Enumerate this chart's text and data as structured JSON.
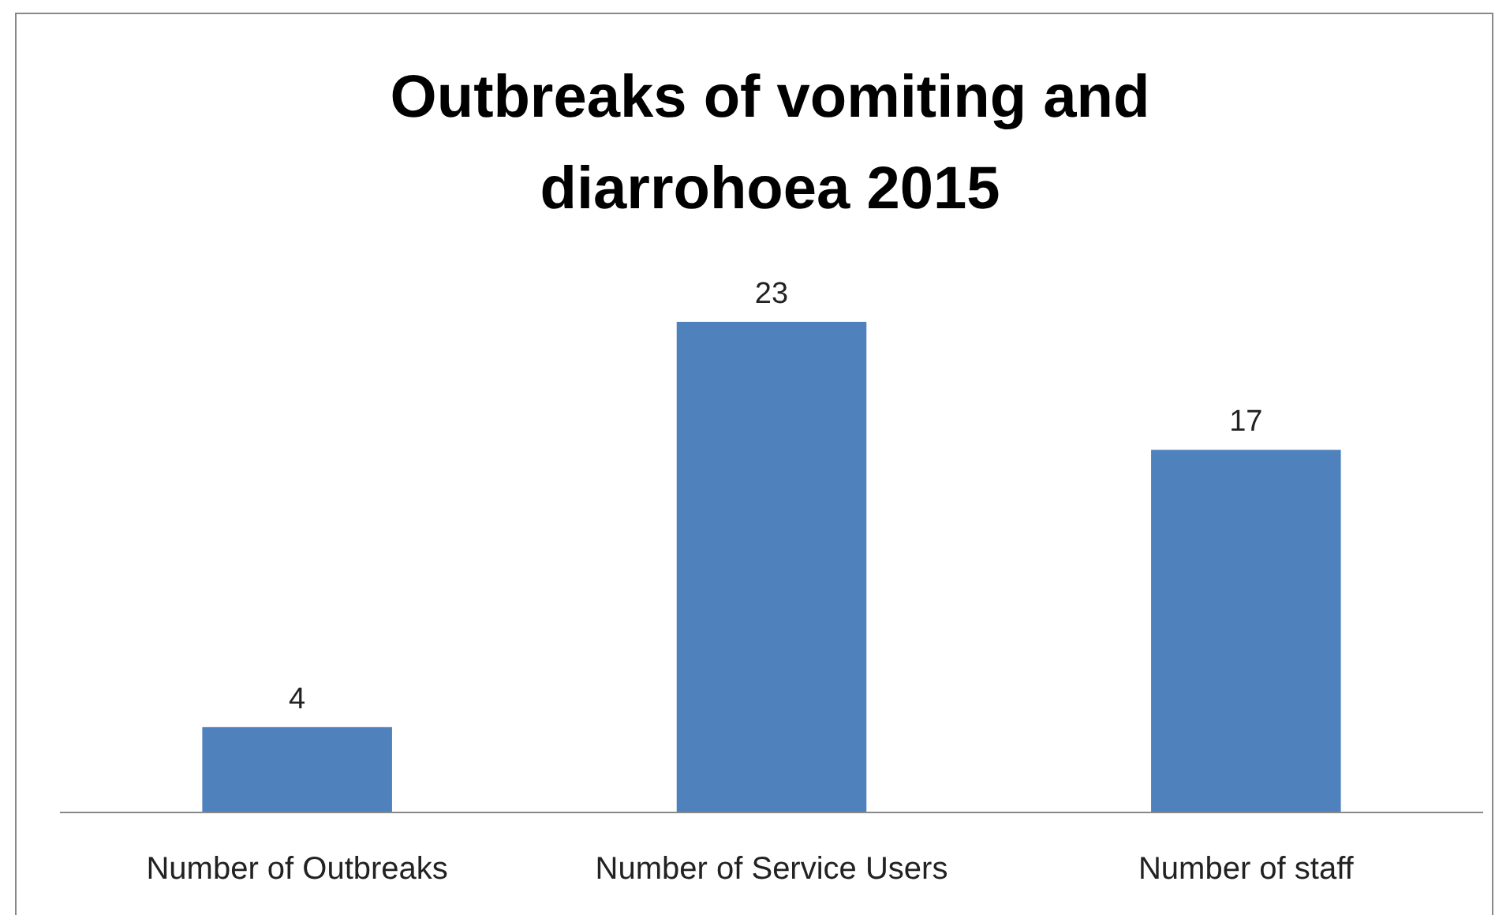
{
  "chart_data": {
    "type": "bar",
    "title": "Outbreaks of vomiting and diarrohoea 2015",
    "categories": [
      "Number of Outbreaks",
      "Number of Service Users",
      "Number of staff"
    ],
    "values": [
      4,
      23,
      17
    ],
    "color": "#4f81bd",
    "data_labels": true
  }
}
